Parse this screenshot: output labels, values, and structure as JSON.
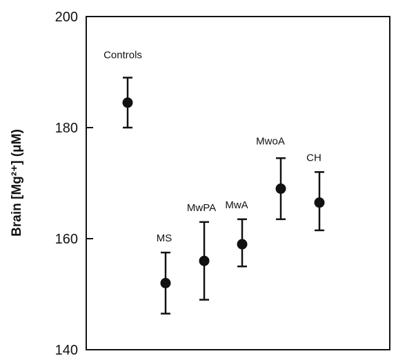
{
  "chart_data": {
    "type": "scatter",
    "title": "",
    "xlabel": "",
    "ylabel": "Brain [Mg²⁺] (μM)",
    "ylim": [
      140,
      200
    ],
    "yticks": [
      140,
      160,
      180,
      200
    ],
    "grid": false,
    "legend": "none",
    "error_bars": true,
    "points": [
      {
        "label": "Controls",
        "value": 184.5,
        "lower": 180.0,
        "upper": 189.0
      },
      {
        "label": "MS",
        "value": 152.0,
        "lower": 146.5,
        "upper": 157.5
      },
      {
        "label": "MwPA",
        "value": 156.0,
        "lower": 149.0,
        "upper": 163.0
      },
      {
        "label": "MwA",
        "value": 159.0,
        "lower": 155.0,
        "upper": 163.5
      },
      {
        "label": "MwoA",
        "value": 169.0,
        "lower": 163.5,
        "upper": 174.5
      },
      {
        "label": "CH",
        "value": 166.5,
        "lower": 161.5,
        "upper": 172.0
      }
    ],
    "colors": {
      "marker": "#111111",
      "axis": "#111111",
      "background": "#ffffff"
    }
  }
}
